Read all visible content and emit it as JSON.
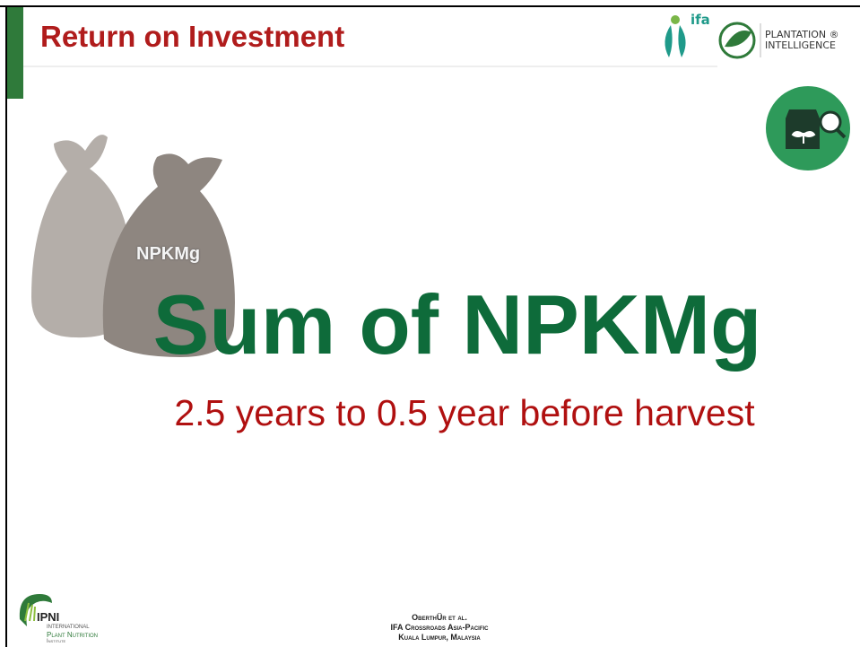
{
  "header": {
    "title": "Return on Investment",
    "logo_ifa": "ifa",
    "logo_pi_line1": "PLANTATION ®",
    "logo_pi_line2": "INTELLIGENCE"
  },
  "body": {
    "bag_label": "NPKMg",
    "headline": "Sum of NPKMg",
    "subheadline": "2.5 years to 0.5 year before harvest"
  },
  "footer": {
    "lines": [
      "OberthÜr et al.",
      "IFA Crossroads Asia-Pacific",
      "Kuala Lumpur, Malaysia"
    ],
    "ipni": {
      "name": "IPNI",
      "line1": "International",
      "line2": "Plant Nutrition",
      "line3": "Institute"
    }
  }
}
